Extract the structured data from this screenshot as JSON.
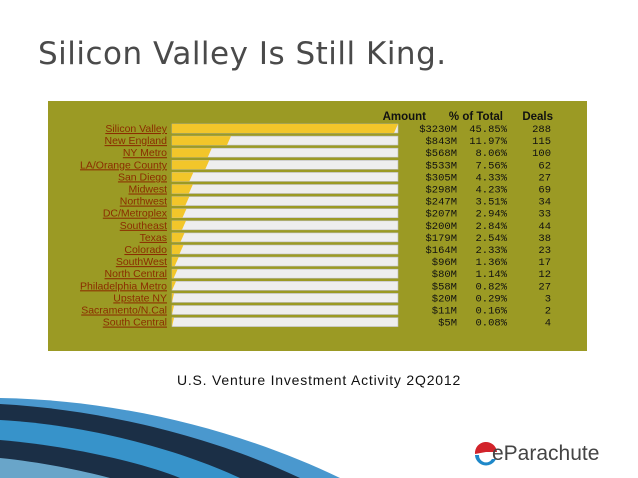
{
  "slide": {
    "title": "Silicon Valley Is Still King.",
    "caption": "U.S. Venture Investment Activity 2Q2012",
    "logo_text": "eParachute",
    "logo_icon": "parachute-e-icon"
  },
  "colors": {
    "panel": "#9b9a24",
    "bar_fill": "#f2c62a",
    "bar_track": "#eeeeee",
    "label_link": "#8b2d00",
    "swoosh_dark": "#1b2f46",
    "swoosh_blue": "#2a86c6",
    "logo_red": "#d2232a",
    "logo_blue": "#1e88c9"
  },
  "chart_data": {
    "type": "bar",
    "orientation": "horizontal",
    "title": "",
    "xlabel": "",
    "ylabel": "",
    "xlim": [
      0,
      3230
    ],
    "grid": false,
    "columns": [
      "Amount",
      "% of Total",
      "Deals"
    ],
    "categories": [
      "Silicon Valley",
      "New England",
      "NY Metro",
      "LA/Orange County",
      "San Diego",
      "Midwest",
      "Northwest",
      "DC/Metroplex",
      "Southeast",
      "Texas",
      "Colorado",
      "SouthWest",
      "North Central",
      "Philadelphia Metro",
      "Upstate NY",
      "Sacramento/N.Cal",
      "South Central"
    ],
    "values": [
      3230,
      843,
      568,
      533,
      305,
      298,
      247,
      207,
      200,
      179,
      164,
      96,
      80,
      58,
      20,
      11,
      5
    ],
    "amount_labels": [
      "$3230M",
      "$843M",
      "$568M",
      "$533M",
      "$305M",
      "$298M",
      "$247M",
      "$207M",
      "$200M",
      "$179M",
      "$164M",
      "$96M",
      "$80M",
      "$58M",
      "$20M",
      "$11M",
      "$5M"
    ],
    "percent_labels": [
      "45.85%",
      "11.97%",
      "8.06%",
      "7.56%",
      "4.33%",
      "4.23%",
      "3.51%",
      "2.94%",
      "2.84%",
      "2.54%",
      "2.33%",
      "1.36%",
      "1.14%",
      "0.82%",
      "0.29%",
      "0.16%",
      "0.08%"
    ],
    "deals": [
      288,
      115,
      100,
      62,
      27,
      69,
      34,
      33,
      44,
      38,
      23,
      17,
      12,
      27,
      3,
      2,
      4
    ]
  }
}
